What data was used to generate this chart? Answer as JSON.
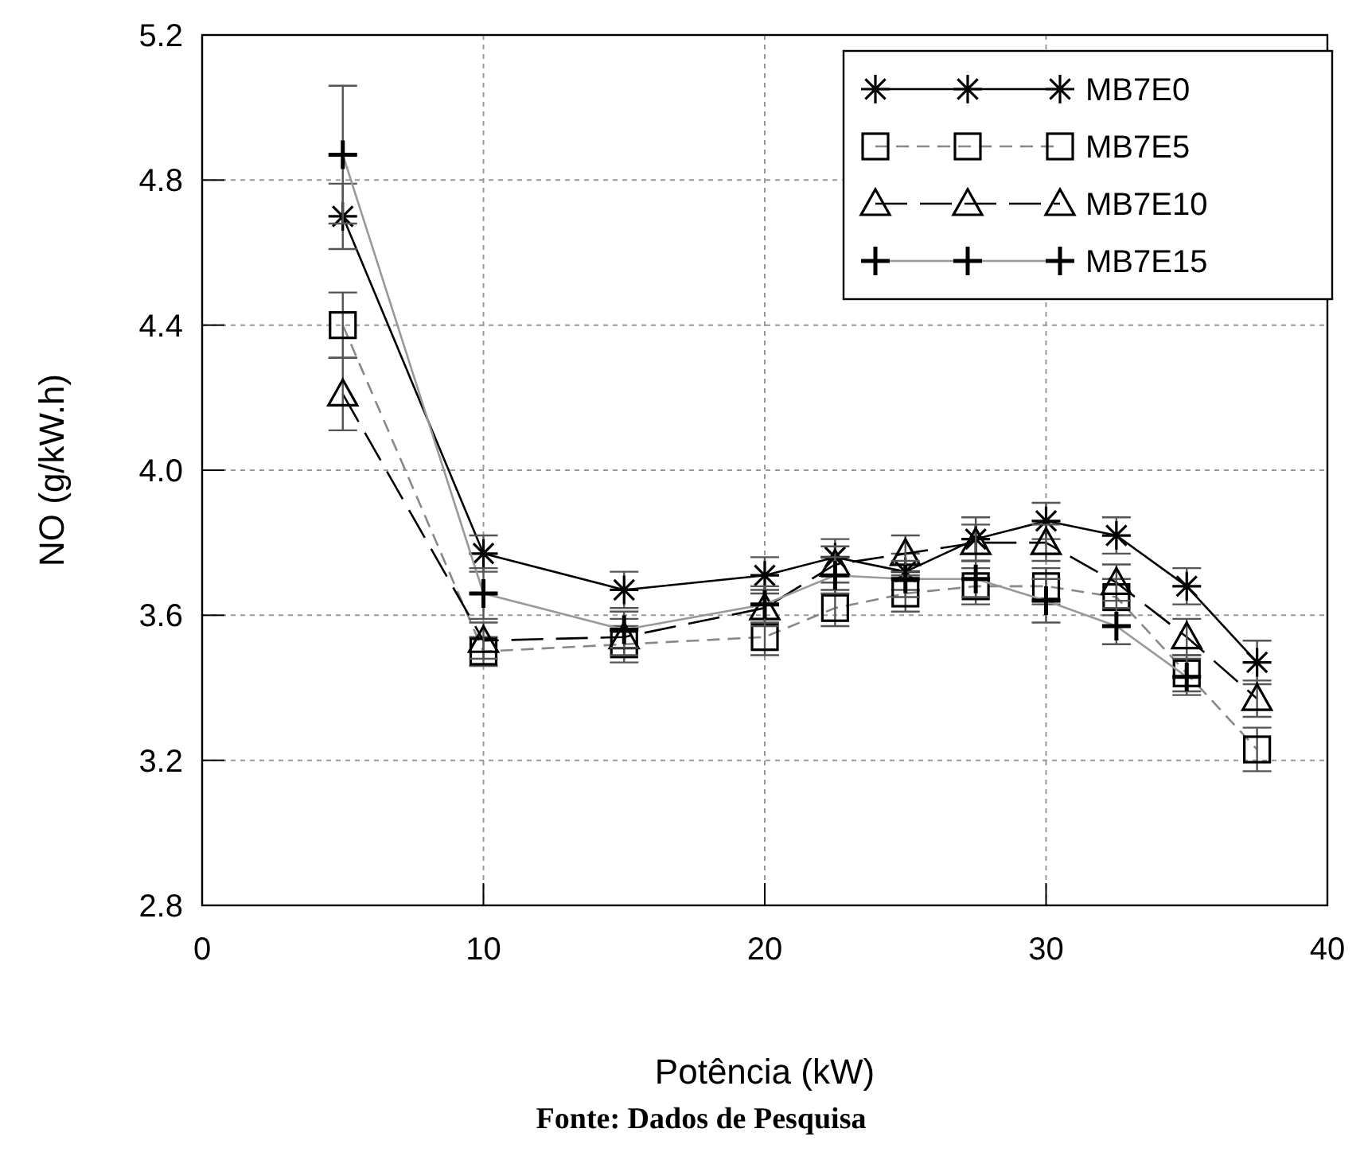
{
  "chart_data": {
    "type": "line",
    "xlabel": "Potência (kW)",
    "ylabel": "NO (g/kW.h)",
    "annotations": [
      "Fonte: Dados de Pesquisa"
    ],
    "x": [
      5,
      10,
      15,
      20,
      22.5,
      25,
      27.5,
      30,
      32.5,
      35,
      37.5
    ],
    "xlim": [
      0,
      40
    ],
    "xticks": [
      0,
      10,
      20,
      30,
      40
    ],
    "ylim": [
      2.8,
      5.2
    ],
    "yticks": [
      {
        "value": 2.8,
        "label": "2.8"
      },
      {
        "value": 3.2,
        "label": "3.2"
      },
      {
        "value": 3.6,
        "label": "3.6"
      },
      {
        "value": 4,
        "label": "4.0"
      },
      {
        "value": 4.4,
        "label": "4.4"
      },
      {
        "value": 4.8,
        "label": "4.8"
      },
      {
        "value": 5.2,
        "label": "5.2"
      }
    ],
    "grid": true,
    "legend": "top right",
    "series": [
      {
        "name": "MB7E0",
        "color": "#000000",
        "marker": "cross",
        "line_style": "solid",
        "values": [
          4.7,
          3.77,
          3.67,
          3.71,
          3.76,
          3.72,
          3.81,
          3.86,
          3.82,
          3.68,
          3.47
        ],
        "errors": [
          0.09,
          0.05,
          0.05,
          0.05,
          0.05,
          0.05,
          0.06,
          0.05,
          0.05,
          0.05,
          0.06
        ]
      },
      {
        "name": "MB7E5",
        "color": "#888888",
        "marker": "square",
        "line_style": "dashed",
        "values": [
          4.4,
          3.5,
          3.52,
          3.54,
          3.62,
          3.66,
          3.68,
          3.68,
          3.65,
          3.44,
          3.23
        ],
        "errors": [
          0.09,
          0.04,
          0.05,
          0.05,
          0.05,
          0.05,
          0.05,
          0.05,
          0.05,
          0.05,
          0.06
        ]
      },
      {
        "name": "MB7E10",
        "color": "#000000",
        "marker": "triangle",
        "line_style": "longdash",
        "values": [
          4.21,
          3.53,
          3.54,
          3.62,
          3.74,
          3.77,
          3.8,
          3.8,
          3.69,
          3.54,
          3.37
        ],
        "errors": [
          0.1,
          0.05,
          0.05,
          0.05,
          0.05,
          0.05,
          0.05,
          0.05,
          0.05,
          0.05,
          0.05
        ]
      },
      {
        "name": "MB7E15",
        "color": "#999999",
        "marker": "cross",
        "line_style": "solid",
        "values": [
          4.87,
          3.66,
          3.56,
          3.63,
          3.71,
          3.7,
          3.7,
          3.64,
          3.57,
          3.43,
          null
        ],
        "errors": [
          0.19,
          0.07,
          0.05,
          0.05,
          0.05,
          0.05,
          0.05,
          0.06,
          0.05,
          0.05,
          null
        ]
      }
    ]
  }
}
